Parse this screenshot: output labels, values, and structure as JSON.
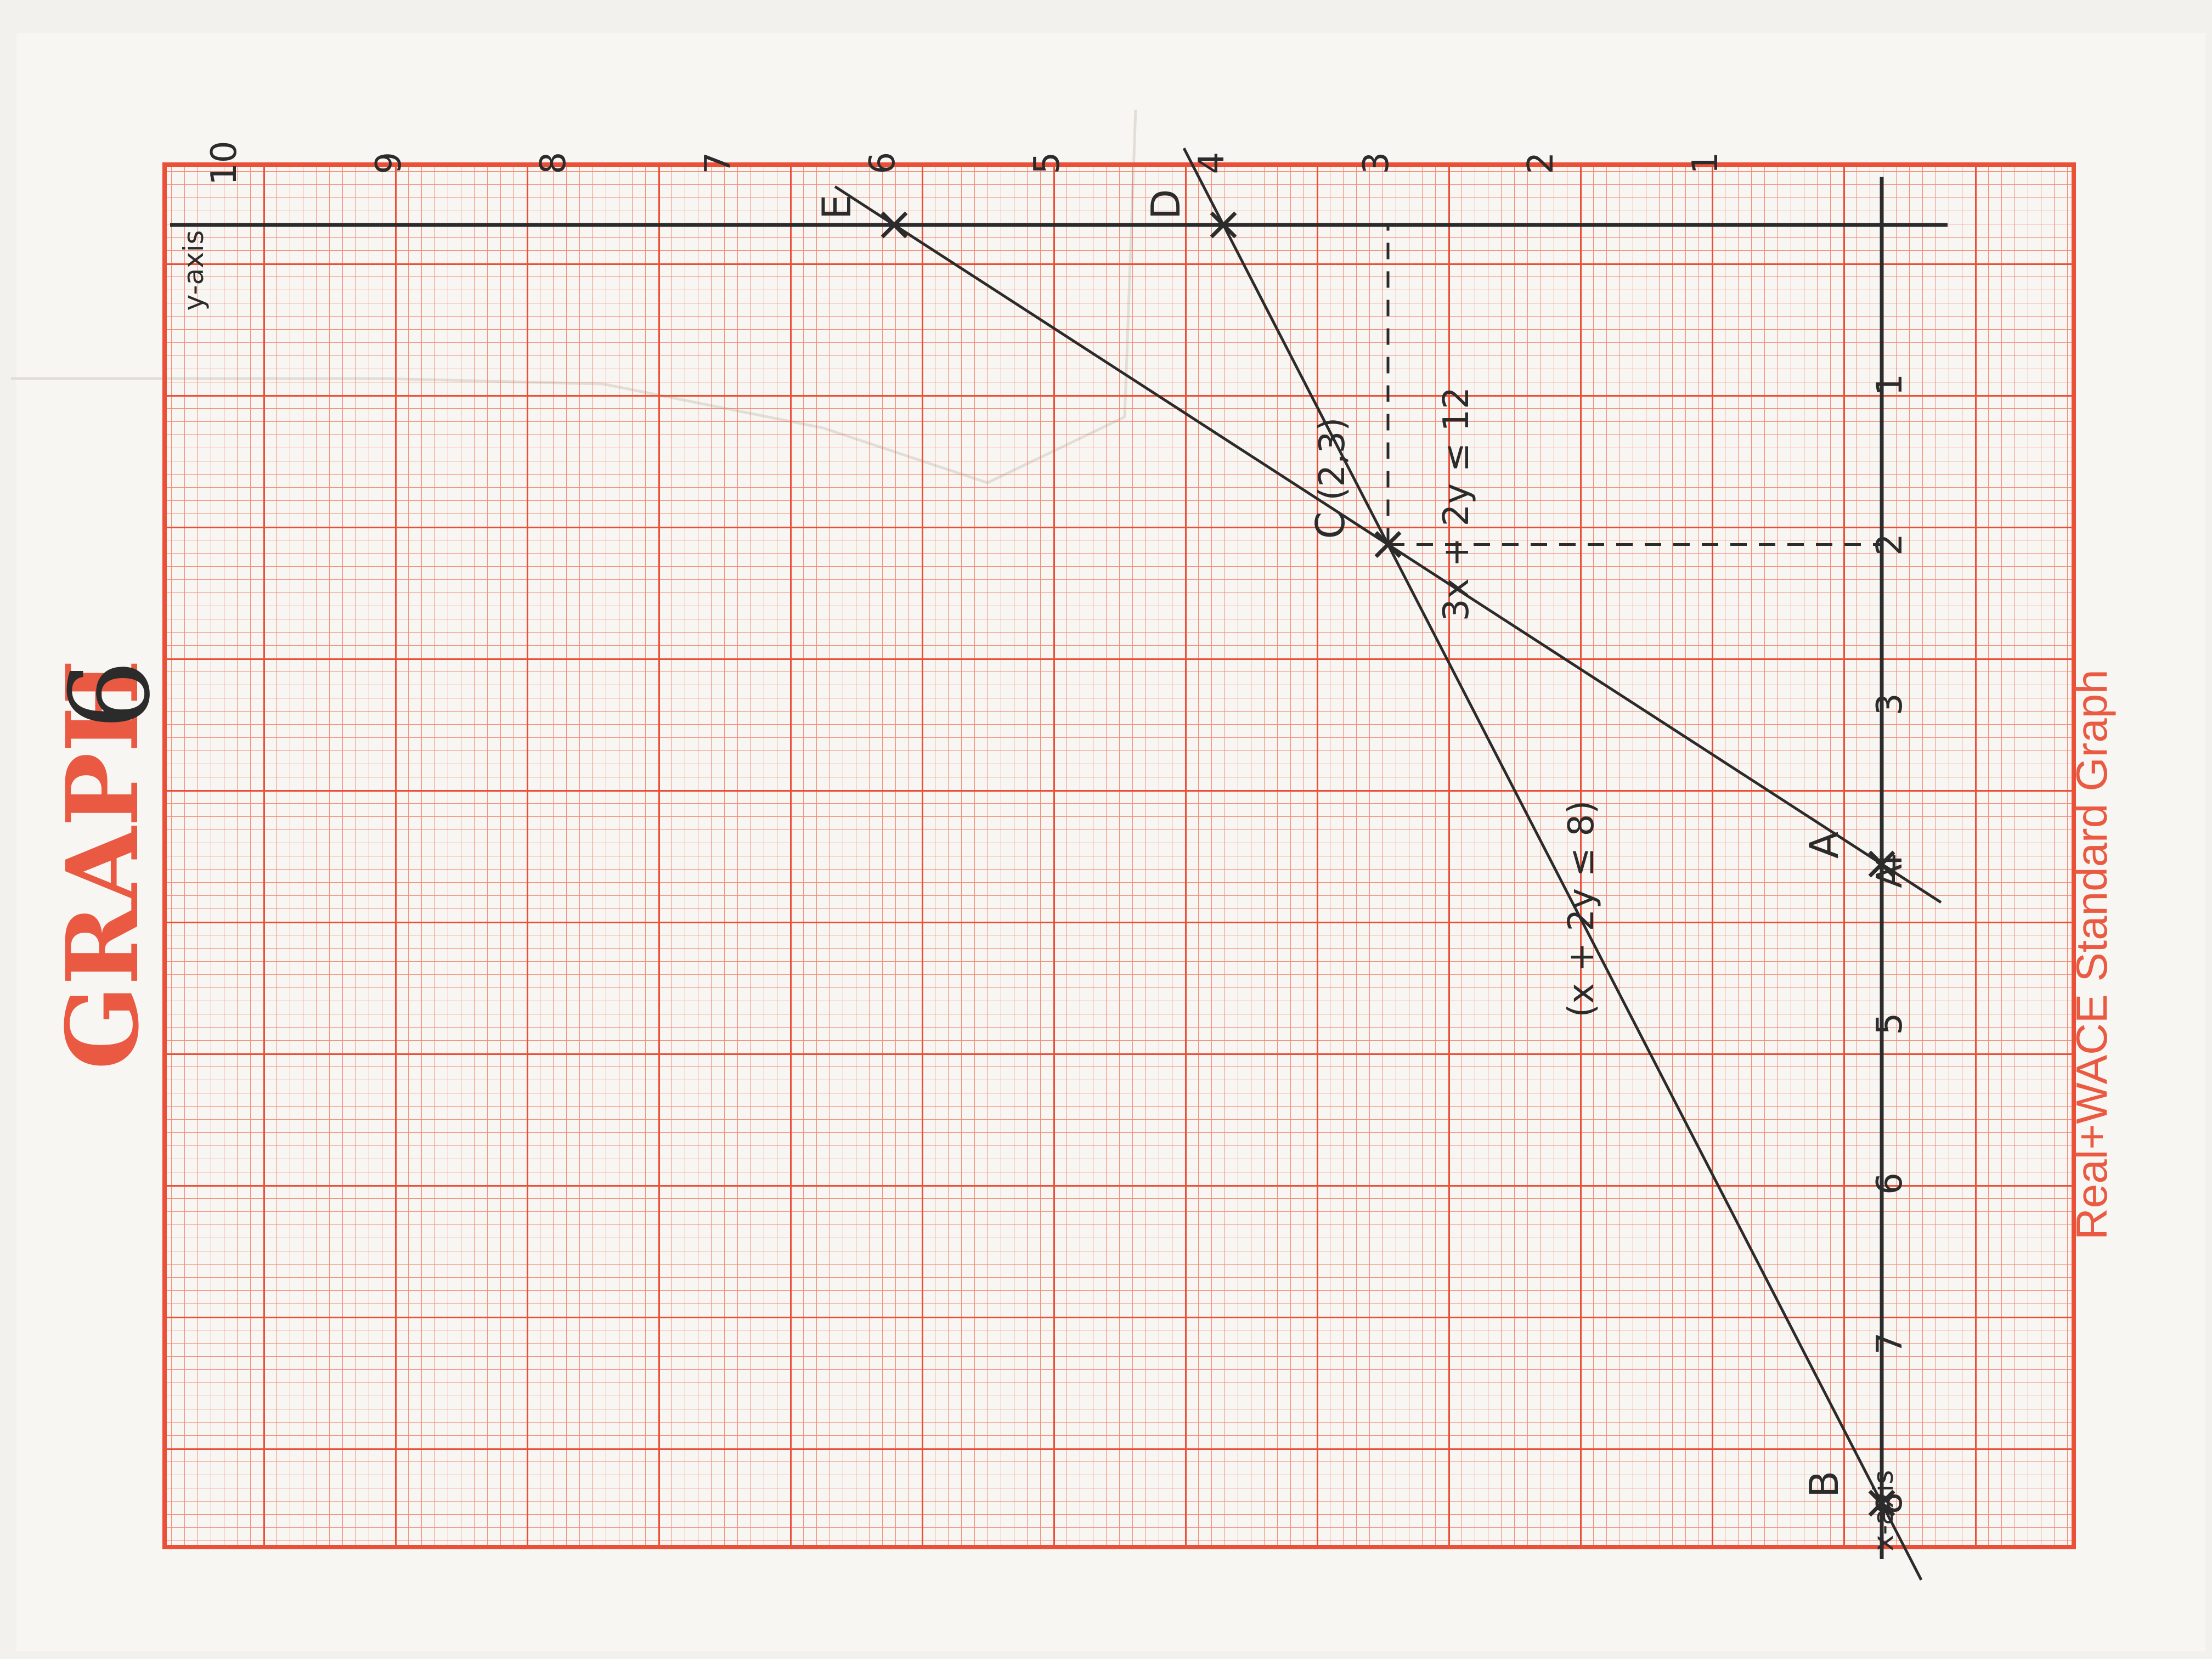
{
  "header": {
    "title": "GRAPH",
    "number": "6",
    "footer": "Real+WACE Standard Graph"
  },
  "colors": {
    "paper_bg": "#f2f1ee",
    "sheet": "#f8f6f2",
    "grid": "#f0664f",
    "ink": "#2b2b2b",
    "brand": "#ea5a43"
  },
  "chart_data": {
    "type": "line",
    "xlabel": "x-axis",
    "ylabel": "y-axis",
    "xlim": [
      0,
      8
    ],
    "ylim": [
      0,
      10
    ],
    "x_ticks": [
      "1",
      "2",
      "3",
      "4",
      "5",
      "6",
      "7",
      "8"
    ],
    "y_ticks": [
      "1",
      "2",
      "3",
      "4",
      "5",
      "6",
      "7",
      "8",
      "9",
      "10"
    ],
    "series": [
      {
        "name": "3x + 2y ≤ 12",
        "points": [
          [
            0,
            6
          ],
          [
            4,
            0
          ]
        ]
      },
      {
        "name": "(x + 2y ≤ 8)",
        "points": [
          [
            0,
            4
          ],
          [
            8,
            0
          ]
        ]
      }
    ],
    "points": [
      {
        "label": "A",
        "x": 4,
        "y": 0
      },
      {
        "label": "B",
        "x": 8,
        "y": 0
      },
      {
        "label": "C",
        "x": 2,
        "y": 3,
        "annotation": "(2,3)"
      },
      {
        "label": "D",
        "x": 0,
        "y": 4
      },
      {
        "label": "E",
        "x": 0,
        "y": 6
      }
    ],
    "extra_labels": {
      "axis_point": "A"
    },
    "grid": true
  }
}
